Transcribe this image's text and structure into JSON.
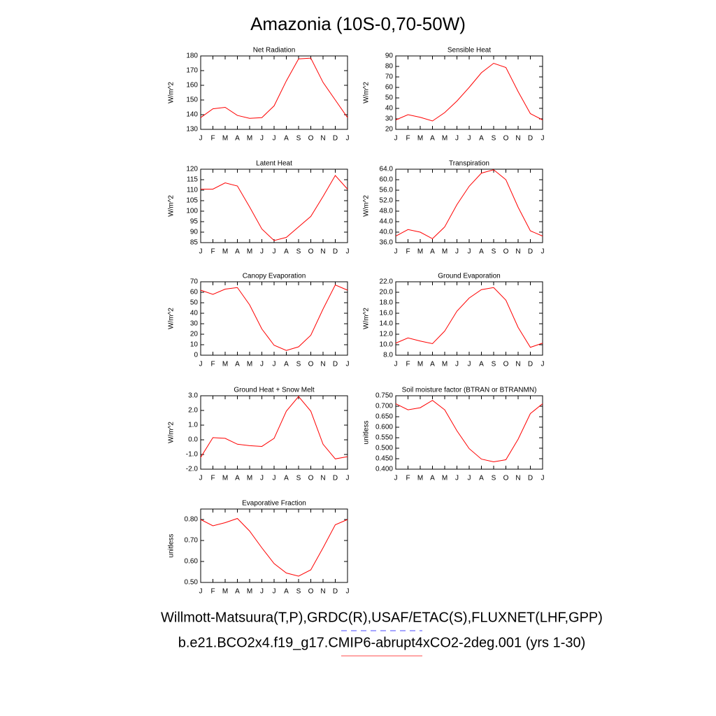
{
  "title": "Amazonia (10S-0,70-50W)",
  "legend": [
    {
      "name": "Willmott-Matsuura(T,P),GRDC(R),USAF/ETAC(S),FLUXNET(LHF,GPP)",
      "color": "#0000ff",
      "dash": "dashed"
    },
    {
      "name": "b.e21.BCO2x4.f19_g17.CMIP6-abrupt4xCO2-2deg.001 (yrs 1-30)",
      "color": "#ff0000",
      "dash": "solid"
    }
  ],
  "chart_data": [
    {
      "type": "line",
      "title": "Net Radiation",
      "y_label": "W/m^2",
      "color": "#ff0000",
      "categories": [
        "J",
        "F",
        "M",
        "A",
        "M",
        "J",
        "J",
        "A",
        "S",
        "O",
        "N",
        "D",
        "J"
      ],
      "values": [
        138,
        144,
        145,
        139.5,
        137.5,
        138,
        146,
        163,
        178,
        178.5,
        162,
        150,
        138
      ],
      "ylim": [
        130,
        180
      ],
      "yticks": [
        130,
        140,
        150,
        160,
        170,
        180
      ]
    },
    {
      "type": "line",
      "title": "Sensible Heat",
      "y_label": "W/m^2",
      "color": "#ff0000",
      "categories": [
        "J",
        "F",
        "M",
        "A",
        "M",
        "J",
        "J",
        "A",
        "S",
        "O",
        "N",
        "D",
        "J"
      ],
      "values": [
        29,
        34,
        31.5,
        28,
        36,
        47,
        60,
        74,
        83,
        79,
        56,
        35,
        29
      ],
      "ylim": [
        20,
        90
      ],
      "yticks": [
        20,
        30,
        40,
        50,
        60,
        70,
        80,
        90
      ]
    },
    {
      "type": "line",
      "title": "Latent Heat",
      "y_label": "W/m^2",
      "color": "#ff0000",
      "categories": [
        "J",
        "F",
        "M",
        "A",
        "M",
        "J",
        "J",
        "A",
        "S",
        "O",
        "N",
        "D",
        "J"
      ],
      "values": [
        110.5,
        110.5,
        113.5,
        112,
        102,
        91.5,
        86,
        87.5,
        92.5,
        97.5,
        107,
        117,
        110.5
      ],
      "ylim": [
        85,
        120
      ],
      "yticks": [
        85,
        90,
        95,
        100,
        105,
        110,
        115,
        120
      ]
    },
    {
      "type": "line",
      "title": "Transpiration",
      "y_label": "W/m^2",
      "color": "#ff0000",
      "categories": [
        "J",
        "F",
        "M",
        "A",
        "M",
        "J",
        "J",
        "A",
        "S",
        "O",
        "N",
        "D",
        "J"
      ],
      "values": [
        38.5,
        41,
        40,
        37.5,
        42,
        50.5,
        57.5,
        62.5,
        63.8,
        60,
        49.5,
        40.5,
        38.5
      ],
      "ylim": [
        36,
        64
      ],
      "yticks": [
        {
          "value": 36,
          "label": "36.0"
        },
        {
          "value": 40,
          "label": "40.0"
        },
        {
          "value": 44,
          "label": "44.0"
        },
        {
          "value": 48,
          "label": "48.0"
        },
        {
          "value": 52,
          "label": "52.0"
        },
        {
          "value": 56,
          "label": "56.0"
        },
        {
          "value": 60,
          "label": "60.0"
        },
        {
          "value": 64,
          "label": "64.0"
        }
      ]
    },
    {
      "type": "line",
      "title": "Canopy Evaporation",
      "y_label": "W/m^2",
      "color": "#ff0000",
      "categories": [
        "J",
        "F",
        "M",
        "A",
        "M",
        "J",
        "J",
        "A",
        "S",
        "O",
        "N",
        "D",
        "J"
      ],
      "values": [
        62,
        58,
        63,
        64.5,
        48,
        25,
        9.5,
        4.5,
        8,
        19,
        44,
        67,
        62
      ],
      "ylim": [
        0,
        70
      ],
      "yticks": [
        0,
        10,
        20,
        30,
        40,
        50,
        60,
        70
      ]
    },
    {
      "type": "line",
      "title": "Ground Evaporation",
      "y_label": "W/m^2",
      "color": "#ff0000",
      "categories": [
        "J",
        "F",
        "M",
        "A",
        "M",
        "J",
        "J",
        "A",
        "S",
        "O",
        "N",
        "D",
        "J"
      ],
      "values": [
        10.3,
        11.3,
        10.7,
        10.2,
        12.6,
        16.4,
        18.9,
        20.5,
        20.9,
        18.5,
        13.3,
        9.5,
        10.3
      ],
      "ylim": [
        8,
        22
      ],
      "yticks": [
        {
          "value": 8,
          "label": "8.0"
        },
        {
          "value": 10,
          "label": "10.0"
        },
        {
          "value": 12,
          "label": "12.0"
        },
        {
          "value": 14,
          "label": "14.0"
        },
        {
          "value": 16,
          "label": "16.0"
        },
        {
          "value": 18,
          "label": "18.0"
        },
        {
          "value": 20,
          "label": "20.0"
        },
        {
          "value": 22,
          "label": "22.0"
        }
      ]
    },
    {
      "type": "line",
      "title": "Ground Heat + Snow Melt",
      "y_label": "W/m^2",
      "color": "#ff0000",
      "categories": [
        "J",
        "F",
        "M",
        "A",
        "M",
        "J",
        "J",
        "A",
        "S",
        "O",
        "N",
        "D",
        "J"
      ],
      "values": [
        -1.2,
        0.15,
        0.1,
        -0.3,
        -0.4,
        -0.45,
        0.1,
        1.95,
        2.95,
        1.95,
        -0.3,
        -1.3,
        -1.15
      ],
      "ylim": [
        -2,
        3
      ],
      "yticks": [
        {
          "value": -2,
          "label": "-2.0"
        },
        {
          "value": -1,
          "label": "-1.0"
        },
        {
          "value": 0,
          "label": "0.0"
        },
        {
          "value": 1,
          "label": "1.0"
        },
        {
          "value": 2,
          "label": "2.0"
        },
        {
          "value": 3,
          "label": "3.0"
        }
      ]
    },
    {
      "type": "line",
      "title": "Soil moisture factor (BTRAN or BTRANMN)",
      "y_label": "unitless",
      "color": "#ff0000",
      "categories": [
        "J",
        "F",
        "M",
        "A",
        "M",
        "J",
        "J",
        "A",
        "S",
        "O",
        "N",
        "D",
        "J"
      ],
      "values": [
        0.712,
        0.683,
        0.693,
        0.728,
        0.683,
        0.583,
        0.498,
        0.448,
        0.435,
        0.445,
        0.543,
        0.665,
        0.712
      ],
      "ylim": [
        0.4,
        0.75
      ],
      "yticks": [
        {
          "value": 0.4,
          "label": "0.400"
        },
        {
          "value": 0.45,
          "label": "0.450"
        },
        {
          "value": 0.5,
          "label": "0.500"
        },
        {
          "value": 0.55,
          "label": "0.550"
        },
        {
          "value": 0.6,
          "label": "0.600"
        },
        {
          "value": 0.65,
          "label": "0.650"
        },
        {
          "value": 0.7,
          "label": "0.700"
        },
        {
          "value": 0.75,
          "label": "0.750"
        }
      ]
    },
    {
      "type": "line",
      "title": "Evaporative Fraction",
      "y_label": "unitless",
      "color": "#ff0000",
      "categories": [
        "J",
        "F",
        "M",
        "A",
        "M",
        "J",
        "J",
        "A",
        "S",
        "O",
        "N",
        "D",
        "J"
      ],
      "values": [
        0.8,
        0.77,
        0.785,
        0.805,
        0.745,
        0.665,
        0.59,
        0.545,
        0.53,
        0.56,
        0.665,
        0.775,
        0.8
      ],
      "ylim": [
        0.5,
        0.85
      ],
      "yticks": [
        {
          "value": 0.5,
          "label": "0.50"
        },
        {
          "value": 0.6,
          "label": "0.60"
        },
        {
          "value": 0.7,
          "label": "0.70"
        },
        {
          "value": 0.8,
          "label": "0.80"
        }
      ]
    }
  ]
}
